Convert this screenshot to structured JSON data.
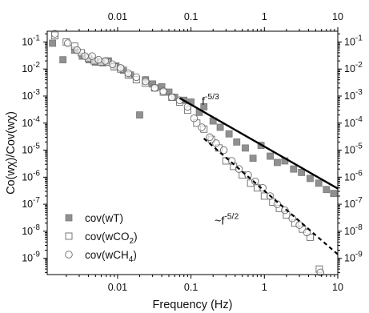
{
  "chart_data": {
    "type": "scatter",
    "x_scale": "log",
    "y_scale": "log",
    "xlim": [
      0.0011,
      10
    ],
    "ylim": [
      2.5e-10,
      0.25
    ],
    "xlabel": "Frequency (Hz)",
    "ylabel": "Co(wχ)/Cov(wχ)",
    "x_ticks": [
      {
        "value": 0.01,
        "label": "0.01"
      },
      {
        "value": 0.1,
        "label": "0.1"
      },
      {
        "value": 1,
        "label": "1"
      },
      {
        "value": 10,
        "label": "10"
      }
    ],
    "y_ticks": [
      {
        "value": 0.1,
        "base": "10",
        "exp": "-1"
      },
      {
        "value": 0.01,
        "base": "10",
        "exp": "-2"
      },
      {
        "value": 0.001,
        "base": "10",
        "exp": "-3"
      },
      {
        "value": 0.0001,
        "base": "10",
        "exp": "-4"
      },
      {
        "value": 1e-05,
        "base": "10",
        "exp": "-5"
      },
      {
        "value": 1e-06,
        "base": "10",
        "exp": "-6"
      },
      {
        "value": 1e-07,
        "base": "10",
        "exp": "-7"
      },
      {
        "value": 1e-08,
        "base": "10",
        "exp": "-8"
      },
      {
        "value": 1e-09,
        "base": "10",
        "exp": "-9"
      }
    ],
    "grid": false,
    "legend_position": "bottom-left",
    "series": [
      {
        "name": "cov(wT)",
        "legend": {
          "base": "cov(wT)",
          "sub": "",
          "tail": ""
        },
        "marker": "square-filled",
        "color": "#8c8c8c",
        "points": [
          [
            0.0013,
            0.09
          ],
          [
            0.0018,
            0.022
          ],
          [
            0.0026,
            0.05
          ],
          [
            0.0033,
            0.03
          ],
          [
            0.0041,
            0.022
          ],
          [
            0.005,
            0.018
          ],
          [
            0.0063,
            0.017
          ],
          [
            0.0075,
            0.02
          ],
          [
            0.0095,
            0.013
          ],
          [
            0.012,
            0.009
          ],
          [
            0.015,
            0.006
          ],
          [
            0.02,
            0.0002
          ],
          [
            0.024,
            0.004
          ],
          [
            0.03,
            0.0028
          ],
          [
            0.04,
            0.0022
          ],
          [
            0.05,
            0.0014
          ],
          [
            0.06,
            0.0009
          ],
          [
            0.08,
            0.0007
          ],
          [
            0.1,
            0.0006
          ],
          [
            0.13,
            0.00025
          ],
          [
            0.15,
            0.0004
          ],
          [
            0.2,
            0.00012
          ],
          [
            0.25,
            7e-05
          ],
          [
            0.33,
            4e-05
          ],
          [
            0.42,
            2e-05
          ],
          [
            0.55,
            1.2e-05
          ],
          [
            0.7,
            5e-06
          ],
          [
            0.9,
            1.5e-05
          ],
          [
            1.2,
            6e-06
          ],
          [
            1.5,
            3.5e-06
          ],
          [
            1.9,
            4e-06
          ],
          [
            2.5,
            2e-06
          ],
          [
            3.2,
            1.5e-06
          ],
          [
            4.2,
            9e-07
          ],
          [
            5.5,
            6e-07
          ],
          [
            7,
            3.5e-07
          ],
          [
            8.8,
            2.5e-07
          ]
        ]
      },
      {
        "name": "cov(wCO2)",
        "legend": {
          "base": "cov(wCO",
          "sub": "2",
          "tail": ")"
        },
        "marker": "square-open",
        "color": "#6a6a6a",
        "points": [
          [
            0.0014,
            0.17
          ],
          [
            0.002,
            0.1
          ],
          [
            0.0026,
            0.07
          ],
          [
            0.0032,
            0.04
          ],
          [
            0.004,
            0.025
          ],
          [
            0.0048,
            0.02
          ],
          [
            0.006,
            0.018
          ],
          [
            0.0072,
            0.018
          ],
          [
            0.009,
            0.012
          ],
          [
            0.011,
            0.01
          ],
          [
            0.014,
            0.006
          ],
          [
            0.018,
            0.004
          ],
          [
            0.024,
            0.003
          ],
          [
            0.032,
            0.002
          ],
          [
            0.042,
            0.0014
          ],
          [
            0.055,
            0.0009
          ],
          [
            0.07,
            0.0006
          ],
          [
            0.09,
            0.0003
          ],
          [
            0.12,
            0.0001
          ],
          [
            0.15,
            6e-05
          ],
          [
            0.19,
            2.5e-05
          ],
          [
            0.24,
            1.2e-05
          ],
          [
            0.3,
            4e-06
          ],
          [
            0.38,
            2.5e-06
          ],
          [
            0.5,
            1.2e-06
          ],
          [
            0.65,
            6e-07
          ],
          [
            0.8,
            4e-07
          ],
          [
            1.0,
            2e-07
          ],
          [
            1.3,
            1.2e-07
          ],
          [
            1.6,
            7e-08
          ],
          [
            2.0,
            4e-08
          ],
          [
            2.6,
            2e-08
          ],
          [
            3.3,
            1.2e-08
          ],
          [
            4.2,
            6e-09
          ],
          [
            5.6,
            4e-10
          ]
        ]
      },
      {
        "name": "cov(wCH4)",
        "legend": {
          "base": "cov(wCH",
          "sub": "4",
          "tail": ")"
        },
        "marker": "circle-open",
        "color": "#6a6a6a",
        "points": [
          [
            0.0014,
            0.2
          ],
          [
            0.0021,
            0.09
          ],
          [
            0.0028,
            0.05
          ],
          [
            0.0036,
            0.03
          ],
          [
            0.0045,
            0.03
          ],
          [
            0.0055,
            0.022
          ],
          [
            0.0068,
            0.02
          ],
          [
            0.0085,
            0.015
          ],
          [
            0.011,
            0.011
          ],
          [
            0.014,
            0.007
          ],
          [
            0.018,
            0.005
          ],
          [
            0.024,
            0.0035
          ],
          [
            0.032,
            0.002
          ],
          [
            0.042,
            0.0015
          ],
          [
            0.055,
            0.0009
          ],
          [
            0.07,
            0.0007
          ],
          [
            0.09,
            0.0004
          ],
          [
            0.11,
            0.00015
          ],
          [
            0.14,
            7e-05
          ],
          [
            0.18,
            3e-05
          ],
          [
            0.22,
            1.8e-05
          ],
          [
            0.28,
            1e-05
          ],
          [
            0.36,
            4e-06
          ],
          [
            0.45,
            2e-06
          ],
          [
            0.6,
            1.2e-06
          ],
          [
            0.75,
            7e-07
          ],
          [
            0.95,
            4e-07
          ],
          [
            1.2,
            2e-07
          ],
          [
            1.5,
            1e-07
          ],
          [
            1.9,
            6e-08
          ],
          [
            2.4,
            3e-08
          ],
          [
            3.0,
            1.7e-08
          ],
          [
            3.8,
            9e-09
          ],
          [
            5.8,
            3e-10
          ]
        ]
      }
    ],
    "reference_lines": [
      {
        "name": "f^-5/3 reference",
        "style": "solid",
        "x": [
          0.07,
          10
        ],
        "y": [
          0.00084,
          3.8e-07
        ]
      },
      {
        "name": "f^-5/2 reference",
        "style": "dashed",
        "x": [
          0.15,
          10
        ],
        "y": [
          2.7e-05,
          1.4e-09
        ]
      }
    ],
    "annotations": [
      {
        "prefix": "f",
        "sup": "-5/3",
        "x": 0.14,
        "y": 0.00048
      },
      {
        "prefix": "~f",
        "sup": "-5/2",
        "x": 0.21,
        "y": 1.8e-08
      }
    ]
  }
}
